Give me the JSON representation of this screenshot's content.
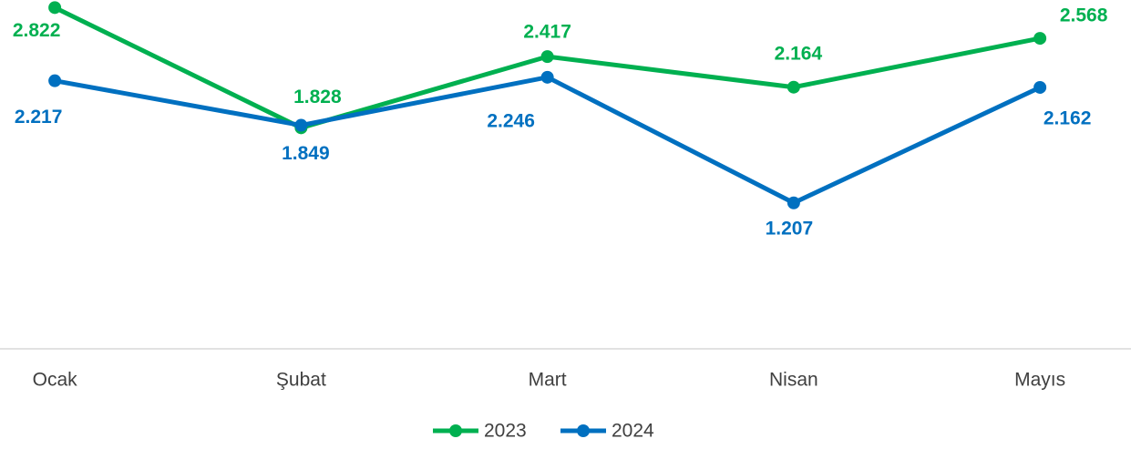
{
  "chart_data": {
    "type": "line",
    "categories": [
      "Ocak",
      "Şubat",
      "Mart",
      "Nisan",
      "Mayıs"
    ],
    "series": [
      {
        "name": "2023",
        "color": "#00b050",
        "values": [
          2.822,
          1.828,
          2.417,
          2.164,
          2.568
        ]
      },
      {
        "name": "2024",
        "color": "#0070c0",
        "values": [
          2.217,
          1.849,
          2.246,
          1.207,
          2.162
        ]
      }
    ],
    "ylim": [
      0,
      2.9
    ],
    "legend": "bottom"
  }
}
